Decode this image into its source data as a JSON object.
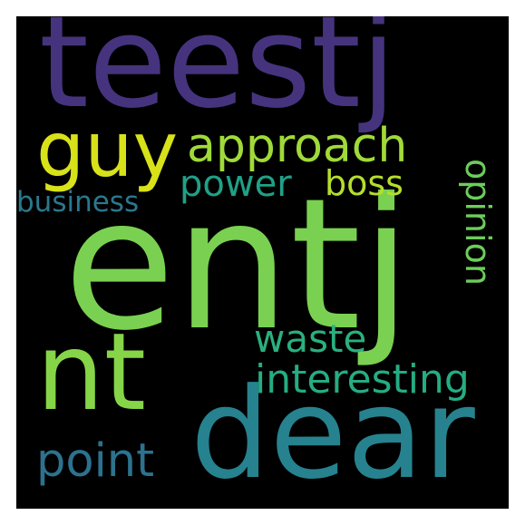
{
  "words": [
    {
      "id": "teestj",
      "text": "teestj",
      "color": "#46337e"
    },
    {
      "id": "entj",
      "text": "entj",
      "color": "#7ad151"
    },
    {
      "id": "dear",
      "text": "dear",
      "color": "#26828e"
    },
    {
      "id": "nt",
      "text": "nt",
      "color": "#86d549"
    },
    {
      "id": "guy",
      "text": "guy",
      "color": "#d8e219"
    },
    {
      "id": "approach",
      "text": "approach",
      "color": "#a0da39"
    },
    {
      "id": "opinion",
      "text": "opinion",
      "color": "#6ccd5a"
    },
    {
      "id": "power",
      "text": "power",
      "color": "#1fa187"
    },
    {
      "id": "boss",
      "text": "boss",
      "color": "#b5de2b"
    },
    {
      "id": "business",
      "text": "business",
      "color": "#2a788e"
    },
    {
      "id": "waste",
      "text": "waste",
      "color": "#2ab07f"
    },
    {
      "id": "interesting",
      "text": "interesting",
      "color": "#25ac82"
    },
    {
      "id": "point",
      "text": "point",
      "color": "#2c728e"
    }
  ]
}
